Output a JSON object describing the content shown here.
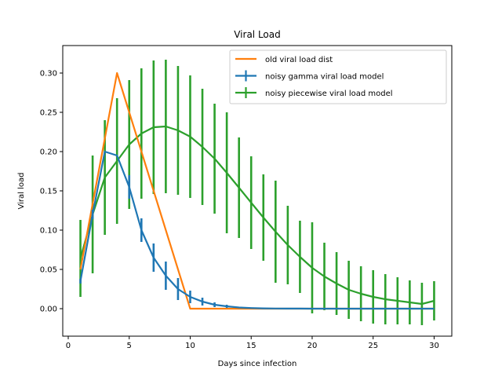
{
  "chart_data": {
    "type": "line",
    "title": "Viral Load",
    "xlabel": "Days since infection",
    "ylabel": "Viral load",
    "xlim": [
      -0.45,
      31.45
    ],
    "ylim": [
      -0.035,
      0.335
    ],
    "xticks": [
      0,
      5,
      10,
      15,
      20,
      25,
      30
    ],
    "yticks": [
      0.0,
      0.05,
      0.1,
      0.15,
      0.2,
      0.25,
      0.3
    ],
    "xtick_labels": [
      "0",
      "5",
      "10",
      "15",
      "20",
      "25",
      "30"
    ],
    "ytick_labels": [
      "0.00",
      "0.05",
      "0.10",
      "0.15",
      "0.20",
      "0.25",
      "0.30"
    ],
    "grid": false,
    "legend_position": "top-right",
    "series": [
      {
        "name": "old viral load dist",
        "kind": "line",
        "color": "#ff7f0e",
        "x": [
          1,
          4,
          10,
          30
        ],
        "y": [
          0.05,
          0.3,
          0.0,
          0.0
        ]
      },
      {
        "name": "noisy gamma viral load model",
        "kind": "errorbar",
        "color": "#1f77b4",
        "x": [
          1,
          2,
          3,
          4,
          5,
          6,
          7,
          8,
          9,
          10,
          11,
          12,
          13,
          14,
          15,
          16,
          17,
          18,
          19,
          20,
          21,
          22,
          23,
          24,
          25,
          26,
          27,
          28,
          29,
          30
        ],
        "y": [
          0.035,
          0.12,
          0.2,
          0.195,
          0.155,
          0.1,
          0.065,
          0.042,
          0.025,
          0.015,
          0.009,
          0.005,
          0.003,
          0.0015,
          0.0008,
          0.0004,
          0.0002,
          0.0001,
          0.0001,
          0.0,
          0.0,
          0.0,
          0.0,
          0.0,
          0.0,
          0.0,
          0.0,
          0.0,
          0.0,
          0.0
        ],
        "err": [
          0.003,
          0.006,
          0.0,
          0.0,
          0.015,
          0.015,
          0.018,
          0.018,
          0.014,
          0.008,
          0.005,
          0.003,
          0.002,
          0.001,
          0.0005,
          0.0,
          0.0,
          0.0,
          0.0,
          0.0,
          0.0,
          0.0,
          0.0,
          0.0,
          0.0,
          0.0,
          0.0,
          0.0,
          0.0,
          0.0
        ]
      },
      {
        "name": "noisy piecewise viral load model",
        "kind": "errorbar",
        "color": "#2ca02c",
        "x": [
          1,
          2,
          3,
          4,
          5,
          6,
          7,
          8,
          9,
          10,
          11,
          12,
          13,
          14,
          15,
          16,
          17,
          18,
          19,
          20,
          21,
          22,
          23,
          24,
          25,
          26,
          27,
          28,
          29,
          30
        ],
        "y": [
          0.064,
          0.12,
          0.167,
          0.188,
          0.209,
          0.223,
          0.231,
          0.232,
          0.227,
          0.219,
          0.206,
          0.191,
          0.173,
          0.154,
          0.135,
          0.116,
          0.098,
          0.081,
          0.066,
          0.052,
          0.041,
          0.032,
          0.024,
          0.019,
          0.015,
          0.012,
          0.01,
          0.008,
          0.006,
          0.01
        ],
        "err": [
          0.049,
          0.075,
          0.073,
          0.08,
          0.082,
          0.083,
          0.085,
          0.085,
          0.082,
          0.078,
          0.074,
          0.07,
          0.077,
          0.064,
          0.059,
          0.055,
          0.065,
          0.05,
          0.046,
          0.058,
          0.043,
          0.04,
          0.037,
          0.035,
          0.034,
          0.032,
          0.03,
          0.028,
          0.027,
          0.025
        ]
      }
    ]
  }
}
